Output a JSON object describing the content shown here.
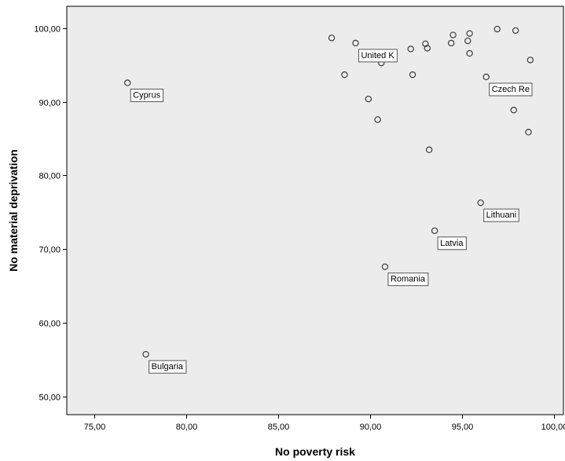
{
  "chart_data": {
    "type": "scatter",
    "xlabel": "No poverty risk",
    "ylabel": "No material deprivation",
    "xlim": [
      73.5,
      100.5
    ],
    "ylim": [
      47.5,
      103.0
    ],
    "x_ticks": [
      75,
      80,
      85,
      90,
      95,
      100
    ],
    "y_ticks": [
      50,
      60,
      70,
      80,
      90,
      100
    ],
    "x_tick_labels": [
      "75,00",
      "80,00",
      "85,00",
      "90,00",
      "95,00",
      "100,00"
    ],
    "y_tick_labels": [
      "50,00",
      "60,00",
      "70,00",
      "80,00",
      "90,00",
      "100,00"
    ],
    "grid": false,
    "colors": {
      "plot_background": "#ececec",
      "marker_edge": "#3a3a3a",
      "label_border": "#555555"
    },
    "points": [
      {
        "x": 76.8,
        "y": 92.6,
        "label": "Cyprus"
      },
      {
        "x": 77.8,
        "y": 55.7,
        "label": "Bulgaria"
      },
      {
        "x": 87.9,
        "y": 98.7,
        "label": ""
      },
      {
        "x": 89.2,
        "y": 98.0,
        "label": "United K"
      },
      {
        "x": 88.6,
        "y": 93.7,
        "label": ""
      },
      {
        "x": 89.9,
        "y": 90.4,
        "label": ""
      },
      {
        "x": 90.4,
        "y": 87.6,
        "label": ""
      },
      {
        "x": 90.6,
        "y": 95.3,
        "label": ""
      },
      {
        "x": 90.8,
        "y": 67.6,
        "label": "Romania"
      },
      {
        "x": 92.2,
        "y": 97.2,
        "label": ""
      },
      {
        "x": 92.3,
        "y": 93.7,
        "label": ""
      },
      {
        "x": 93.0,
        "y": 97.9,
        "label": ""
      },
      {
        "x": 93.1,
        "y": 97.3,
        "label": ""
      },
      {
        "x": 93.2,
        "y": 83.5,
        "label": ""
      },
      {
        "x": 93.5,
        "y": 72.5,
        "label": "Latvia"
      },
      {
        "x": 94.4,
        "y": 98.0,
        "label": ""
      },
      {
        "x": 94.5,
        "y": 99.1,
        "label": ""
      },
      {
        "x": 95.3,
        "y": 98.3,
        "label": ""
      },
      {
        "x": 95.4,
        "y": 99.3,
        "label": ""
      },
      {
        "x": 95.4,
        "y": 96.6,
        "label": ""
      },
      {
        "x": 96.0,
        "y": 76.3,
        "label": "Lithuani"
      },
      {
        "x": 96.3,
        "y": 93.4,
        "label": "Czech Re"
      },
      {
        "x": 96.9,
        "y": 99.9,
        "label": ""
      },
      {
        "x": 97.8,
        "y": 88.9,
        "label": ""
      },
      {
        "x": 97.9,
        "y": 99.7,
        "label": ""
      },
      {
        "x": 98.6,
        "y": 85.9,
        "label": ""
      },
      {
        "x": 98.7,
        "y": 95.7,
        "label": ""
      }
    ]
  }
}
